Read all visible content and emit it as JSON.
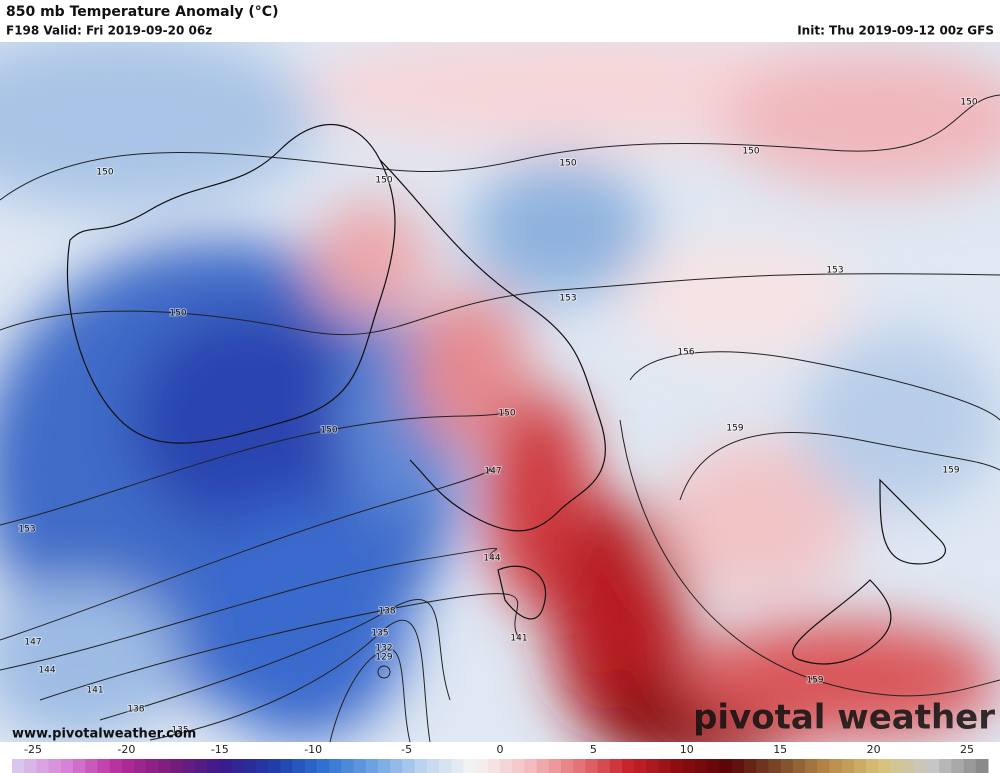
{
  "header": {
    "title": "850 mb Temperature Anomaly (°C)",
    "valid": "F198 Valid: Fri 2019-09-20 06z",
    "init": "Init: Thu 2019-09-12 00z GFS"
  },
  "contour_labels": [
    "150",
    "150",
    "150",
    "153",
    "147",
    "144",
    "141",
    "138",
    "135",
    "150",
    "150",
    "150",
    "150",
    "153",
    "153",
    "156",
    "159",
    "159",
    "159",
    "150",
    "147",
    "144",
    "141",
    "138",
    "135",
    "132",
    "129"
  ],
  "footer": {
    "website": "www.pivotalweather.com",
    "logo": "pivotal weather"
  },
  "colorbar": {
    "ticks": [
      -25,
      -20,
      -15,
      -10,
      -5,
      0,
      5,
      10,
      15,
      20,
      25
    ]
  }
}
